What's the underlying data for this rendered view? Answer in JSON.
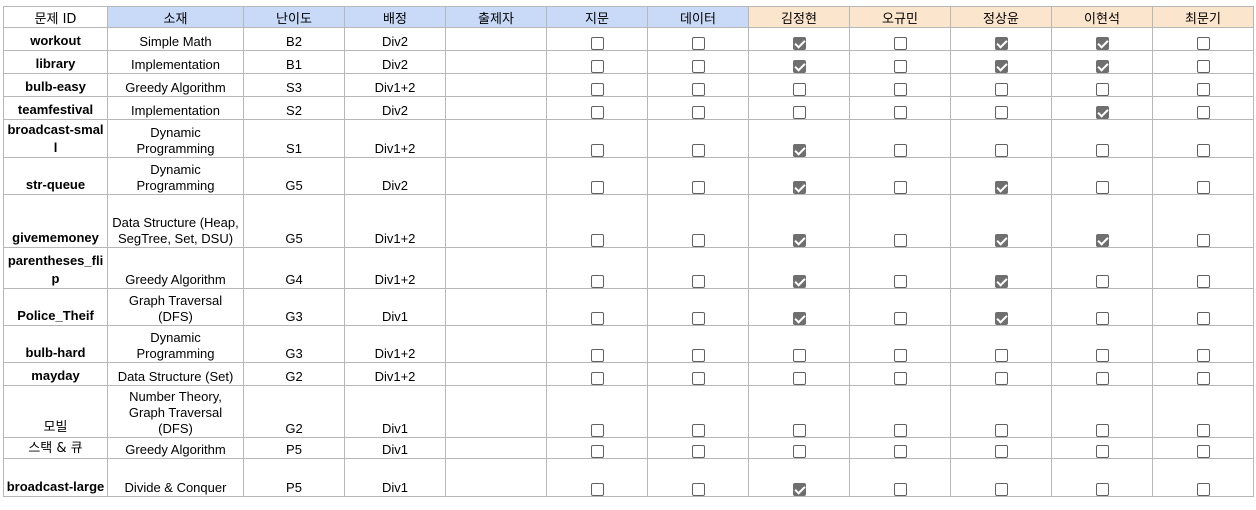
{
  "headers": {
    "id": "문제 ID",
    "category": "소재",
    "difficulty": "난이도",
    "division": "배정",
    "author": "출제자",
    "statement": "지문",
    "data": "데이터",
    "reviewer1": "김정현",
    "reviewer2": "오규민",
    "reviewer3": "정상윤",
    "reviewer4": "이현석",
    "reviewer5": "최문기"
  },
  "colors": {
    "blue_header": "#c9daf8",
    "orange_header": "#fce5cd"
  },
  "rows": [
    {
      "id": "workout",
      "category": "Simple Math",
      "difficulty": "B2",
      "division": "Div2",
      "author": "",
      "checks": [
        false,
        false,
        true,
        false,
        true,
        true,
        false
      ]
    },
    {
      "id": "library",
      "category": "Implementation",
      "difficulty": "B1",
      "division": "Div2",
      "author": "",
      "checks": [
        false,
        false,
        true,
        false,
        true,
        true,
        false
      ]
    },
    {
      "id": "bulb-easy",
      "category": "Greedy Algorithm",
      "difficulty": "S3",
      "division": "Div1+2",
      "author": "",
      "checks": [
        false,
        false,
        false,
        false,
        false,
        false,
        false
      ]
    },
    {
      "id": "teamfestival",
      "category": "Implementation",
      "difficulty": "S2",
      "division": "Div2",
      "author": "",
      "checks": [
        false,
        false,
        false,
        false,
        false,
        true,
        false
      ]
    },
    {
      "id": "broadcast-small",
      "category": "Dynamic Programming",
      "difficulty": "S1",
      "division": "Div1+2",
      "author": "",
      "checks": [
        false,
        false,
        true,
        false,
        false,
        false,
        false
      ]
    },
    {
      "id": "str-queue",
      "category": "Dynamic Programming",
      "difficulty": "G5",
      "division": "Div2",
      "author": "",
      "checks": [
        false,
        false,
        true,
        false,
        true,
        false,
        false
      ]
    },
    {
      "id": "givememoney",
      "category": "Data Structure (Heap, SegTree, Set, DSU)",
      "difficulty": "G5",
      "division": "Div1+2",
      "author": "",
      "checks": [
        false,
        false,
        true,
        false,
        true,
        true,
        false
      ]
    },
    {
      "id": "parentheses_flip",
      "category": "Greedy Algorithm",
      "difficulty": "G4",
      "division": "Div1+2",
      "author": "",
      "checks": [
        false,
        false,
        true,
        false,
        true,
        false,
        false
      ]
    },
    {
      "id": "Police_Theif",
      "category": "Graph Traversal (DFS)",
      "difficulty": "G3",
      "division": "Div1",
      "author": "",
      "checks": [
        false,
        false,
        true,
        false,
        true,
        false,
        false
      ]
    },
    {
      "id": "bulb-hard",
      "category": "Dynamic Programming",
      "difficulty": "G3",
      "division": "Div1+2",
      "author": "",
      "checks": [
        false,
        false,
        false,
        false,
        false,
        false,
        false
      ]
    },
    {
      "id": "mayday",
      "category": "Data Structure (Set)",
      "difficulty": "G2",
      "division": "Div1+2",
      "author": "",
      "checks": [
        false,
        false,
        false,
        false,
        false,
        false,
        false
      ]
    },
    {
      "id": "모빌",
      "category": "Number Theory, Graph Traversal (DFS)",
      "difficulty": "G2",
      "division": "Div1",
      "author": "",
      "checks": [
        false,
        false,
        false,
        false,
        false,
        false,
        false
      ]
    },
    {
      "id": "스택 & 큐",
      "category": "Greedy Algorithm",
      "difficulty": "P5",
      "division": "Div1",
      "author": "",
      "checks": [
        false,
        false,
        false,
        false,
        false,
        false,
        false
      ]
    },
    {
      "id": "broadcast-large",
      "category": "Divide & Conquer",
      "difficulty": "P5",
      "division": "Div1",
      "author": "",
      "checks": [
        false,
        false,
        true,
        false,
        false,
        false,
        false
      ]
    }
  ]
}
